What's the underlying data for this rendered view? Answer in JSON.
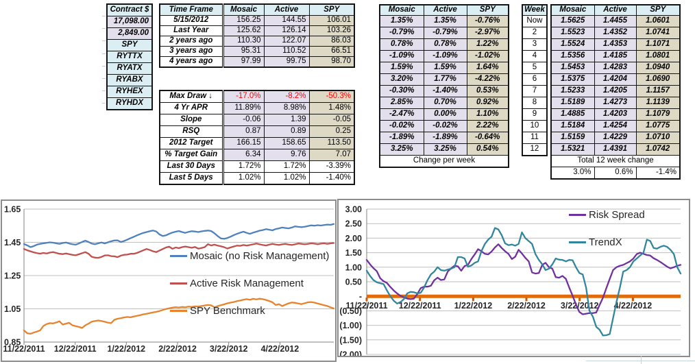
{
  "tables": {
    "contract": {
      "header": "Contract $",
      "rows": [
        "17,098.00",
        "2,849.00",
        "SPY",
        "RYTTX",
        "RYATX",
        "RYABX",
        "RYHEX",
        "RYHDX"
      ]
    },
    "timeframe": {
      "headers": [
        "Time Frame",
        "Mosaic",
        "Active",
        "SPY"
      ],
      "block1": [
        [
          "5/15/2012",
          "156.25",
          "144.55",
          "106.01"
        ],
        [
          "Last Year",
          "125.62",
          "126.14",
          "103.26"
        ],
        [
          "2 years ago",
          "110.30",
          "122.07",
          "86.03"
        ],
        [
          "3 years ago",
          "95.31",
          "110.52",
          "66.51"
        ],
        [
          "4 years ago",
          "97.99",
          "99.75",
          "98.70"
        ]
      ],
      "block2": [
        [
          "Max Draw ↓",
          "-17.0%",
          "-8.2%",
          "-50.3%"
        ],
        [
          "4 Yr APR",
          "11.89%",
          "8.98%",
          "1.48%"
        ],
        [
          "Slope",
          "-0.06",
          "1.39",
          "-0.05"
        ],
        [
          "RSQ",
          "0.87",
          "0.89",
          "0.25"
        ],
        [
          "2012 Target",
          "166.15",
          "158.65",
          "113.50"
        ],
        [
          "% Target Gain",
          "6.34",
          "9.76",
          "7.07"
        ],
        [
          "Last 30 Days",
          "1.72%",
          "1.72%",
          "-3.39%"
        ],
        [
          "Last 5 Days",
          "1.02%",
          "1.02%",
          "-1.40%"
        ]
      ]
    },
    "weekly_pct": {
      "headers": [
        "Mosaic",
        "Active",
        "SPY"
      ],
      "rows": [
        [
          "1.35%",
          "1.35%",
          "-0.76%"
        ],
        [
          "-0.79%",
          "-0.79%",
          "-2.97%"
        ],
        [
          "0.78%",
          "0.78%",
          "1.22%"
        ],
        [
          "-1.09%",
          "-1.09%",
          "-1.02%"
        ],
        [
          "1.59%",
          "1.59%",
          "1.64%"
        ],
        [
          "3.20%",
          "1.77%",
          "-4.22%"
        ],
        [
          "-0.30%",
          "-1.40%",
          "0.53%"
        ],
        [
          "2.85%",
          "0.70%",
          "0.92%"
        ],
        [
          "-2.47%",
          "0.00%",
          "1.10%"
        ],
        [
          "-0.02%",
          "-0.02%",
          "2.22%"
        ],
        [
          "-1.89%",
          "-1.89%",
          "-0.64%"
        ],
        [
          "3.25%",
          "3.25%",
          "0.54%"
        ]
      ],
      "footer": "Change per week"
    },
    "week_col": {
      "header": "Week",
      "rows": [
        "Now",
        "2",
        "3",
        "4",
        "5",
        "6",
        "7",
        "8",
        "9",
        "10",
        "11",
        "12"
      ]
    },
    "weekly_ratio": {
      "headers": [
        "Mosaic",
        "Active",
        "SPY"
      ],
      "rows": [
        [
          "1.5625",
          "1.4455",
          "1.0601"
        ],
        [
          "1.5523",
          "1.4352",
          "1.0741"
        ],
        [
          "1.5524",
          "1.4353",
          "1.1071"
        ],
        [
          "1.5356",
          "1.4185",
          "1.0801"
        ],
        [
          "1.5453",
          "1.4283",
          "1.0940"
        ],
        [
          "1.5375",
          "1.4204",
          "1.0690"
        ],
        [
          "1.5233",
          "1.4205",
          "1.1157"
        ],
        [
          "1.5189",
          "1.4273",
          "1.1139"
        ],
        [
          "1.4885",
          "1.4203",
          "1.1079"
        ],
        [
          "1.5184",
          "1.4254",
          "1.0775"
        ],
        [
          "1.5159",
          "1.4229",
          "1.0710"
        ],
        [
          "1.5321",
          "1.4391",
          "1.0742"
        ]
      ],
      "footer": "Total 12 week change",
      "totals": [
        "3.0%",
        "0.6%",
        "-1.4%"
      ]
    }
  },
  "colors": {
    "header_fill": "#DAEEF3",
    "lavender_fill": "#E4DFEC",
    "tan_fill": "#DDD9C4",
    "negative_red": "#FF0000",
    "mosaic_line": "#4F81BD",
    "active_line": "#C0504D",
    "spy_line": "#E8832C",
    "risk_spread_line": "#7030A0",
    "trendx_line": "#31859C",
    "zero_line": "#E36C09"
  },
  "chart_data": [
    {
      "type": "line",
      "title": "",
      "x_ticks": [
        "11/22/2011",
        "12/22/2011",
        "1/22/2012",
        "2/22/2012",
        "3/22/2012",
        "4/22/2012"
      ],
      "ylim": [
        0.85,
        1.65
      ],
      "y_step": 0.2,
      "y_labels": [
        "1.65",
        "1.45",
        "1.25",
        "1.05",
        "0.85"
      ],
      "grid": true,
      "legend_position": "inside-right",
      "series": [
        {
          "name": "Mosaic (no Risk Management)",
          "color": "#4F81BD",
          "values": [
            1.44,
            1.432,
            1.421,
            1.427,
            1.436,
            1.441,
            1.444,
            1.447,
            1.45,
            1.448,
            1.444,
            1.441,
            1.446,
            1.449,
            1.443,
            1.439,
            1.436,
            1.443,
            1.452,
            1.46,
            1.452,
            1.442,
            1.439,
            1.444,
            1.449,
            1.443,
            1.45,
            1.456,
            1.461,
            1.462,
            1.452,
            1.458,
            1.466,
            1.475,
            1.483,
            1.492,
            1.5,
            1.507,
            1.512,
            1.517,
            1.521,
            1.515,
            1.497,
            1.488,
            1.492,
            1.501,
            1.509,
            1.514,
            1.518,
            1.512,
            1.507,
            1.513,
            1.517,
            1.515,
            1.512,
            1.516,
            1.519,
            1.521,
            1.518,
            1.505,
            1.488,
            1.474,
            1.471,
            1.476,
            1.484,
            1.493,
            1.501,
            1.508,
            1.514,
            1.507,
            1.501,
            1.508,
            1.514,
            1.52,
            1.524,
            1.529,
            1.526,
            1.522,
            1.53,
            1.534,
            1.539,
            1.536,
            1.534,
            1.539,
            1.546,
            1.543,
            1.541,
            1.544,
            1.548,
            1.552,
            1.55,
            1.553,
            1.551,
            1.554,
            1.557,
            1.555,
            1.56
          ]
        },
        {
          "name": "Active Risk Management",
          "color": "#C0504D",
          "values": [
            1.41,
            1.402,
            1.396,
            1.39,
            1.385,
            1.382,
            1.386,
            1.383,
            1.388,
            1.391,
            1.386,
            1.381,
            1.379,
            1.383,
            1.379,
            1.375,
            1.372,
            1.378,
            1.385,
            1.391,
            1.381,
            1.363,
            1.358,
            1.357,
            1.362,
            1.371,
            1.372,
            1.367,
            1.366,
            1.361,
            1.37,
            1.375,
            1.376,
            1.381,
            1.381,
            1.386,
            1.394,
            1.402,
            1.41,
            1.404,
            1.396,
            1.391,
            1.401,
            1.41,
            1.419,
            1.424,
            1.411,
            1.419,
            1.415,
            1.421,
            1.425,
            1.421,
            1.417,
            1.422,
            1.412,
            1.416,
            1.421,
            1.439,
            1.431,
            1.436,
            1.43,
            1.426,
            1.421,
            1.413,
            1.419,
            1.425,
            1.43,
            1.429,
            1.434,
            1.43,
            1.434,
            1.438,
            1.443,
            1.438,
            1.434,
            1.431,
            1.436,
            1.441,
            1.437,
            1.434,
            1.438,
            1.441,
            1.437,
            1.434,
            1.438,
            1.443,
            1.441,
            1.438,
            1.441,
            1.444,
            1.442,
            1.439,
            1.442,
            1.444,
            1.441,
            1.444,
            1.446
          ]
        },
        {
          "name": "SPY Benchmark",
          "color": "#E8832C",
          "values": [
            0.921,
            0.903,
            0.9,
            0.907,
            0.913,
            0.92,
            0.947,
            0.958,
            0.964,
            0.962,
            0.968,
            0.975,
            0.955,
            0.961,
            0.966,
            0.951,
            0.946,
            0.941,
            0.935,
            0.951,
            0.961,
            0.973,
            0.977,
            0.98,
            0.977,
            0.972,
            0.967,
            0.964,
            0.984,
            0.99,
            0.994,
            0.998,
            1.001,
            0.999,
            1.004,
            1.008,
            1.012,
            1.017,
            1.02,
            1.024,
            1.028,
            1.032,
            1.037,
            1.043,
            1.049,
            1.053,
            1.057,
            1.06,
            1.058,
            1.061,
            1.059,
            1.063,
            1.061,
            1.065,
            1.063,
            1.067,
            1.07,
            1.073,
            1.071,
            1.059,
            1.066,
            1.072,
            1.077,
            1.083,
            1.087,
            1.091,
            1.096,
            1.1,
            1.105,
            1.108,
            1.104,
            1.11,
            1.107,
            1.111,
            1.108,
            1.103,
            1.097,
            1.089,
            1.073,
            1.078,
            1.067,
            1.075,
            1.083,
            1.088,
            1.086,
            1.082,
            1.078,
            1.084,
            1.089,
            1.091,
            1.087,
            1.082,
            1.077,
            1.072,
            1.067,
            1.059,
            1.052
          ]
        }
      ]
    },
    {
      "type": "line",
      "title": "",
      "x_ticks": [
        "11/22/2011",
        "12/22/2011",
        "1/22/2012",
        "2/22/2012",
        "3/22/2012",
        "4/22/2012"
      ],
      "ylim": [
        -2.0,
        3.0
      ],
      "y_step": 0.5,
      "y_labels": [
        "3.00",
        "2.50",
        "2.00",
        "1.50",
        "1.00",
        "0.50",
        "-",
        "(0.50)",
        "(1.00)",
        "(1.50)",
        "(2.00)"
      ],
      "grid": true,
      "zero_line_color": "#E36C09",
      "legend_position": "top-right",
      "series": [
        {
          "name": "Risk Spread",
          "color": "#7030A0",
          "values": [
            1.25,
            1.1,
            0.97,
            0.86,
            0.62,
            0.52,
            0.46,
            0.32,
            0.2,
            0.1,
            0.02,
            -0.04,
            -0.08,
            -0.1,
            -0.08,
            0.08,
            0.28,
            0.33,
            0.33,
            0.36,
            0.55,
            0.64,
            0.56,
            0.58,
            0.85,
            0.96,
            1.05,
            1.03,
            0.88,
            1.04,
            1.08,
            1.28,
            1.44,
            1.62,
            1.55,
            1.46,
            1.44,
            1.54,
            1.68,
            1.79,
            1.66,
            1.55,
            1.46,
            1.28,
            1.36,
            1.6,
            1.47,
            1.32,
            1.2,
            0.82,
            0.78,
            0.8,
            1.08,
            1.15,
            1.0,
            0.95,
            0.66,
            0.64,
            0.7,
            0.6,
            0.3,
            0.02,
            -0.28,
            -0.54,
            -0.62,
            -0.6,
            -0.58,
            -0.58,
            -0.56,
            -0.3,
            -0.05,
            0.28,
            0.6,
            0.9,
            1.0,
            1.05,
            1.08,
            1.14,
            1.2,
            1.3,
            1.45,
            1.5,
            1.46,
            1.42,
            1.4,
            1.31,
            1.25,
            1.18,
            1.1,
            1.02,
            0.96,
            1.0,
            1.05,
            1.08
          ]
        },
        {
          "name": "TrendX",
          "color": "#31859C",
          "values": [
            0.88,
            0.7,
            0.56,
            0.48,
            0.45,
            0.42,
            0.2,
            0.0,
            -0.15,
            -0.25,
            -0.2,
            -0.1,
            0.1,
            0.15,
            0.14,
            0.1,
            0.12,
            0.3,
            0.55,
            0.75,
            0.85,
            1.0,
            0.9,
            0.88,
            0.92,
            0.95,
            1.0,
            1.35,
            1.35,
            1.3,
            1.02,
            1.06,
            1.15,
            1.2,
            1.55,
            1.8,
            1.95,
            2.05,
            2.35,
            2.3,
            2.1,
            1.82,
            1.76,
            1.78,
            1.74,
            1.8,
            2.2,
            2.0,
            1.9,
            1.8,
            1.45,
            1.25,
            1.1,
            0.9,
            0.95,
            1.1,
            1.3,
            1.26,
            1.25,
            1.2,
            1.25,
            1.24,
            1.0,
            0.8,
            0.75,
            0.3,
            -0.5,
            -0.7,
            -1.05,
            -1.15,
            -1.35,
            -1.34,
            -1.3,
            -0.75,
            -0.2,
            0.3,
            0.85,
            0.9,
            1.0,
            1.2,
            1.3,
            1.4,
            1.5,
            1.95,
            1.9,
            1.66,
            1.64,
            1.7,
            1.74,
            1.7,
            1.6,
            1.45,
            1.0,
            0.78
          ]
        }
      ]
    }
  ]
}
